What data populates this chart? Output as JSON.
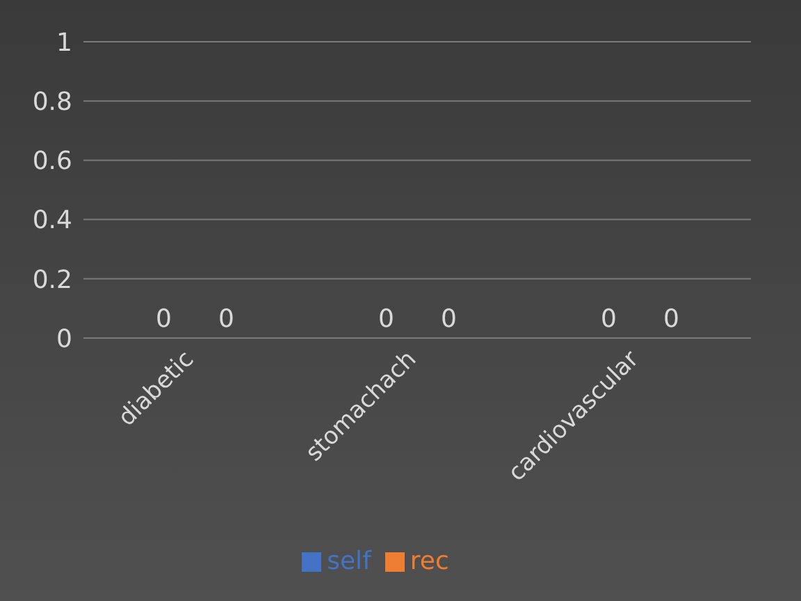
{
  "chart_data": {
    "type": "bar",
    "categories": [
      "diabetic",
      "stomachach",
      "cardiovascular"
    ],
    "series": [
      {
        "name": "self",
        "color": "#4472c4",
        "values": [
          0,
          0,
          0
        ]
      },
      {
        "name": "rec",
        "color": "#ed7d31",
        "values": [
          0,
          0,
          0
        ]
      }
    ],
    "ylim": [
      0,
      1
    ],
    "yticks": [
      0,
      0.2,
      0.4,
      0.6,
      0.8,
      1
    ],
    "grid": "y",
    "legend": "bottom",
    "data_labels": true
  }
}
